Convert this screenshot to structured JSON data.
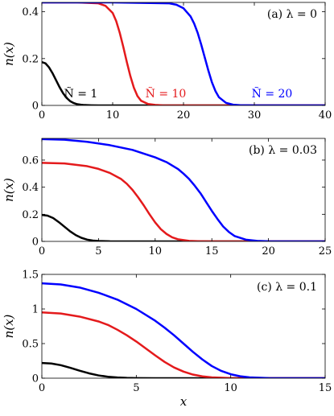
{
  "colors": {
    "N1": "#000000",
    "N10": "#e41a1c",
    "N20": "#0000ff"
  },
  "chart_data": [
    {
      "type": "line",
      "panel_label": "(a) λ = 0",
      "ylabel": "n(x)",
      "xlabel": "",
      "xlim": [
        0,
        40
      ],
      "ylim": [
        0,
        0.44
      ],
      "xticks": [
        0,
        10,
        20,
        30,
        40
      ],
      "xtick_labels": [
        "0",
        "10",
        "20",
        "30",
        "40"
      ],
      "yticks": [
        0,
        0.2,
        0.4
      ],
      "ytick_labels": [
        "0",
        "0.2",
        "0.4"
      ],
      "annotations": [
        {
          "text": "Ñ = 1",
          "series": "N1",
          "x": 5.5,
          "y": 0.035
        },
        {
          "text": "Ñ = 10",
          "series": "N10",
          "x": 17.5,
          "y": 0.035
        },
        {
          "text": "Ñ = 20",
          "series": "N20",
          "x": 32.5,
          "y": 0.035
        }
      ],
      "series": [
        {
          "color_key": "N1",
          "x": [
            0,
            0.5,
            1,
            1.5,
            2,
            2.5,
            3,
            3.5,
            4,
            4.5,
            5,
            5.5,
            6,
            7,
            8,
            10,
            15,
            40
          ],
          "y": [
            0.185,
            0.18,
            0.163,
            0.138,
            0.108,
            0.078,
            0.052,
            0.032,
            0.018,
            0.01,
            0.005,
            0.003,
            0.0015,
            0.0005,
            0.0001,
            0,
            0,
            0
          ]
        },
        {
          "color_key": "N10",
          "x": [
            0,
            5,
            8,
            9,
            10,
            10.5,
            11,
            11.5,
            12,
            12.5,
            13,
            13.5,
            14,
            15,
            16,
            17,
            20,
            40
          ],
          "y": [
            0.44,
            0.44,
            0.436,
            0.425,
            0.395,
            0.36,
            0.31,
            0.25,
            0.185,
            0.125,
            0.075,
            0.04,
            0.02,
            0.006,
            0.002,
            0.0005,
            0,
            0
          ]
        },
        {
          "color_key": "N20",
          "x": [
            0,
            10,
            18,
            19,
            20,
            21,
            21.5,
            22,
            22.5,
            23,
            23.5,
            24,
            24.5,
            25,
            26,
            27,
            28,
            30,
            40
          ],
          "y": [
            0.44,
            0.44,
            0.436,
            0.43,
            0.415,
            0.38,
            0.35,
            0.31,
            0.26,
            0.205,
            0.15,
            0.1,
            0.062,
            0.035,
            0.011,
            0.003,
            0.001,
            0,
            0
          ]
        }
      ]
    },
    {
      "type": "line",
      "panel_label": "(b) λ = 0.03",
      "ylabel": "n(x)",
      "xlabel": "",
      "xlim": [
        0,
        25
      ],
      "ylim": [
        0,
        0.76
      ],
      "xticks": [
        0,
        5,
        10,
        15,
        20,
        25
      ],
      "xtick_labels": [
        "0",
        "5",
        "10",
        "15",
        "20",
        "25"
      ],
      "yticks": [
        0,
        0.2,
        0.4,
        0.6
      ],
      "ytick_labels": [
        "0",
        "0.2",
        "0.4",
        "0.6"
      ],
      "series": [
        {
          "color_key": "N1",
          "x": [
            0,
            0.5,
            1,
            1.5,
            2,
            2.5,
            3,
            3.5,
            4,
            4.5,
            5,
            6,
            7,
            10,
            25
          ],
          "y": [
            0.195,
            0.19,
            0.172,
            0.142,
            0.108,
            0.074,
            0.046,
            0.026,
            0.013,
            0.006,
            0.003,
            0.0005,
            0,
            0,
            0
          ]
        },
        {
          "color_key": "N10",
          "x": [
            0,
            2,
            4,
            5,
            6,
            7,
            7.5,
            8,
            8.5,
            9,
            9.5,
            10,
            10.5,
            11,
            11.5,
            12,
            13,
            14,
            15,
            25
          ],
          "y": [
            0.58,
            0.575,
            0.555,
            0.535,
            0.505,
            0.46,
            0.425,
            0.38,
            0.325,
            0.265,
            0.2,
            0.14,
            0.09,
            0.055,
            0.03,
            0.016,
            0.004,
            0.001,
            0,
            0
          ]
        },
        {
          "color_key": "N20",
          "x": [
            0,
            2,
            4,
            6,
            8,
            10,
            11,
            12,
            12.5,
            13,
            13.5,
            14,
            14.5,
            15,
            15.5,
            16,
            16.5,
            17,
            18,
            19,
            20,
            25
          ],
          "y": [
            0.755,
            0.75,
            0.735,
            0.71,
            0.675,
            0.62,
            0.585,
            0.535,
            0.5,
            0.46,
            0.41,
            0.355,
            0.29,
            0.225,
            0.165,
            0.11,
            0.07,
            0.04,
            0.013,
            0.004,
            0.001,
            0
          ]
        }
      ]
    },
    {
      "type": "line",
      "panel_label": "(c) λ = 0.1",
      "ylabel": "n(x)",
      "xlabel": "x",
      "xlim": [
        0,
        15
      ],
      "ylim": [
        0,
        1.5
      ],
      "xticks": [
        0,
        5,
        10,
        15
      ],
      "xtick_labels": [
        "0",
        "5",
        "10",
        "15"
      ],
      "yticks": [
        0,
        0.5,
        1,
        1.5
      ],
      "ytick_labels": [
        "0",
        "0.5",
        "1",
        "1.5"
      ],
      "series": [
        {
          "color_key": "N1",
          "x": [
            0,
            0.5,
            1,
            1.5,
            2,
            2.5,
            3,
            3.5,
            4,
            4.5,
            5,
            6,
            8,
            15
          ],
          "y": [
            0.22,
            0.212,
            0.188,
            0.15,
            0.108,
            0.07,
            0.04,
            0.021,
            0.01,
            0.004,
            0.002,
            0.0003,
            0,
            0
          ]
        },
        {
          "color_key": "N10",
          "x": [
            0,
            1,
            2,
            3,
            3.5,
            4,
            4.5,
            5,
            5.5,
            6,
            6.5,
            7,
            7.5,
            8,
            8.5,
            9,
            10,
            11,
            15
          ],
          "y": [
            0.95,
            0.935,
            0.89,
            0.82,
            0.77,
            0.7,
            0.62,
            0.53,
            0.43,
            0.33,
            0.235,
            0.155,
            0.095,
            0.052,
            0.026,
            0.012,
            0.002,
            0,
            0
          ]
        },
        {
          "color_key": "N20",
          "x": [
            0,
            1,
            2,
            3,
            4,
            5,
            6,
            6.5,
            7,
            7.5,
            8,
            8.5,
            9,
            9.5,
            10,
            10.5,
            11,
            12,
            13,
            15
          ],
          "y": [
            1.37,
            1.355,
            1.31,
            1.235,
            1.135,
            1.0,
            0.83,
            0.73,
            0.62,
            0.5,
            0.38,
            0.27,
            0.175,
            0.105,
            0.057,
            0.028,
            0.012,
            0.002,
            0,
            0
          ]
        }
      ]
    }
  ]
}
